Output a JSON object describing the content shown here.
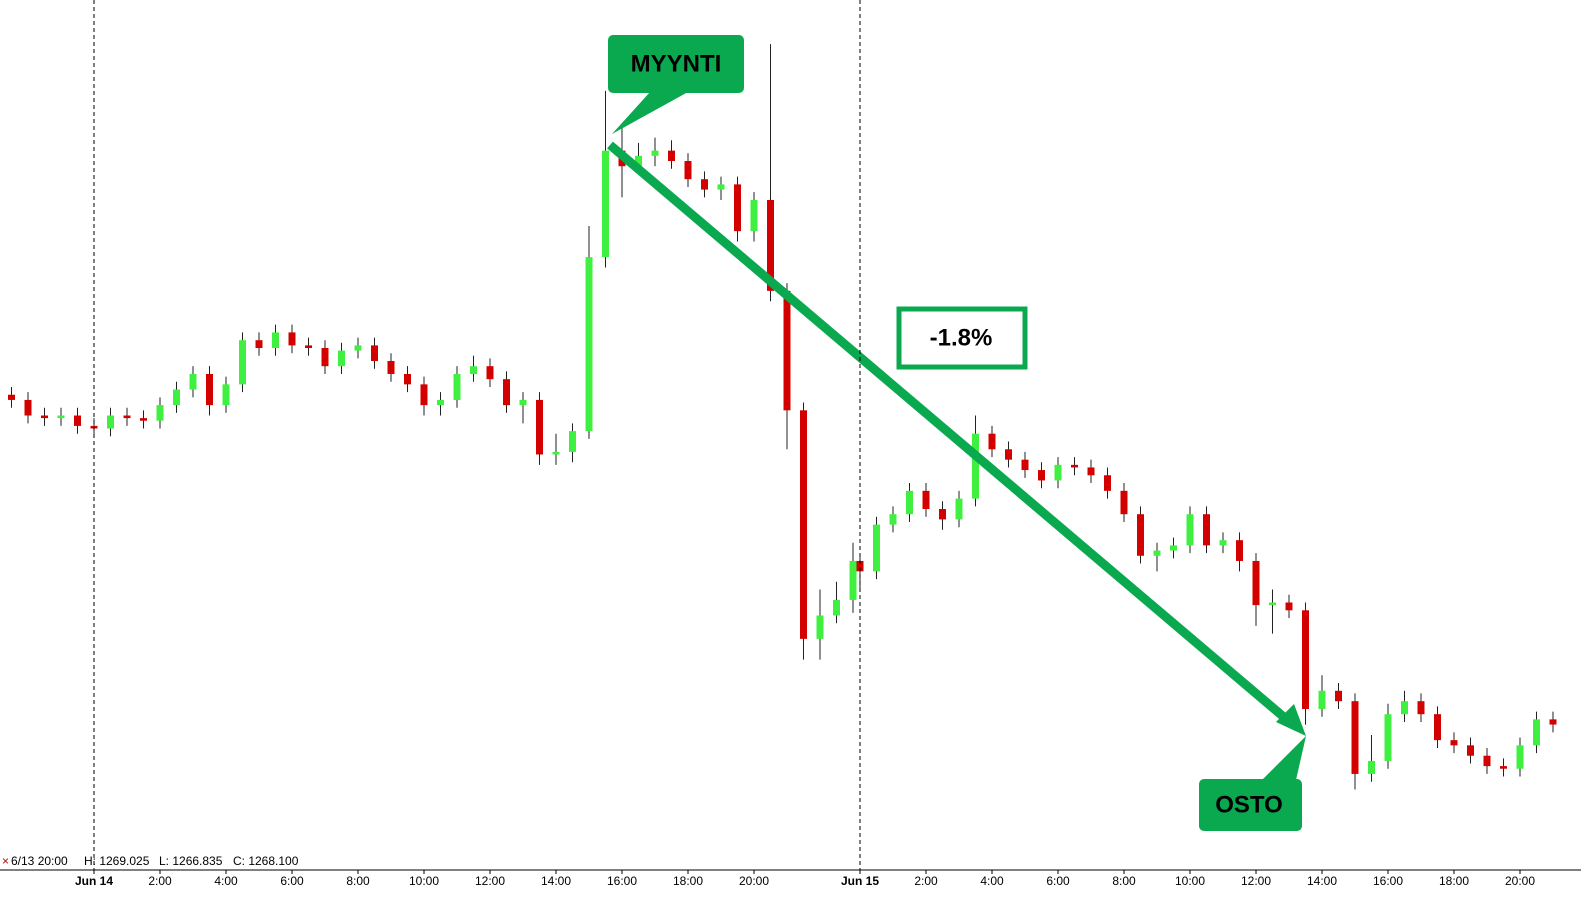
{
  "chart_data": {
    "type": "candlestick",
    "up_color": "#40f040",
    "down_color": "#d40000",
    "ylim": [
      1250.4,
      1283.9
    ],
    "x": [
      -2.5,
      -2,
      -1.5,
      -1,
      -0.5,
      0,
      0.5,
      1,
      1.5,
      2,
      2.5,
      3,
      3.5,
      4,
      4.5,
      5,
      5.5,
      6,
      6.5,
      7,
      7.5,
      8,
      8.5,
      9,
      9.5,
      10,
      10.5,
      11,
      11.5,
      12,
      12.5,
      13,
      13.5,
      14,
      14.5,
      15,
      15.5,
      16,
      16.5,
      17,
      17.5,
      18,
      18.5,
      19,
      19.5,
      20,
      20.5,
      21,
      21.5,
      22,
      22.5,
      23,
      24,
      24.5,
      25,
      25.5,
      26,
      26.5,
      27,
      27.5,
      28,
      28.5,
      29,
      29.5,
      30,
      30.5,
      31,
      31.5,
      32,
      32.5,
      33,
      33.5,
      34,
      34.5,
      35,
      35.5,
      36,
      36.5,
      37,
      37.5,
      38,
      38.5,
      39,
      39.5,
      40,
      40.5,
      41,
      41.5,
      42,
      42.5,
      43,
      43.5,
      44,
      44.5,
      45
    ],
    "open": [
      1268.7,
      1268.5,
      1267.9,
      1267.8,
      1267.9,
      1267.5,
      1267.4,
      1267.9,
      1267.8,
      1267.7,
      1268.3,
      1268.9,
      1269.5,
      1268.3,
      1269.1,
      1270.8,
      1270.5,
      1271.1,
      1270.6,
      1270.5,
      1269.8,
      1270.4,
      1270.6,
      1270.0,
      1269.5,
      1269.1,
      1268.3,
      1268.5,
      1269.5,
      1269.8,
      1269.3,
      1268.3,
      1268.5,
      1266.4,
      1266.5,
      1267.3,
      1274.0,
      1278.1,
      1277.5,
      1277.9,
      1278.1,
      1277.7,
      1277.0,
      1276.6,
      1276.8,
      1275.0,
      1276.2,
      1272.7,
      1268.1,
      1259.3,
      1260.2,
      1260.8,
      1262.3,
      1261.9,
      1263.7,
      1264.1,
      1265.0,
      1264.3,
      1263.9,
      1264.7,
      1267.2,
      1266.6,
      1266.2,
      1265.8,
      1265.4,
      1266.0,
      1265.9,
      1265.6,
      1265.0,
      1264.1,
      1262.5,
      1262.7,
      1262.9,
      1264.1,
      1262.9,
      1263.1,
      1262.3,
      1260.6,
      1260.7,
      1260.4,
      1256.6,
      1257.3,
      1256.9,
      1254.1,
      1254.6,
      1256.4,
      1256.9,
      1256.4,
      1255.4,
      1255.2,
      1254.8,
      1254.4,
      1254.3,
      1255.2,
      1256.2
    ],
    "high": [
      1269.0,
      1268.8,
      1268.2,
      1268.2,
      1268.2,
      1267.8,
      1268.2,
      1268.2,
      1268.1,
      1268.6,
      1269.2,
      1269.8,
      1269.8,
      1269.4,
      1271.1,
      1271.1,
      1271.4,
      1271.4,
      1270.9,
      1270.8,
      1270.7,
      1270.9,
      1270.9,
      1270.3,
      1269.8,
      1269.4,
      1268.8,
      1269.8,
      1270.2,
      1270.1,
      1269.6,
      1268.8,
      1268.8,
      1267.2,
      1267.6,
      1275.2,
      1280.4,
      1279.0,
      1278.4,
      1278.6,
      1278.5,
      1278.0,
      1277.3,
      1277.1,
      1277.1,
      1276.5,
      1282.2,
      1273.0,
      1268.4,
      1261.2,
      1261.5,
      1263.0,
      1262.6,
      1264.0,
      1264.4,
      1265.3,
      1265.3,
      1264.6,
      1265.0,
      1267.9,
      1267.5,
      1266.9,
      1266.5,
      1266.1,
      1266.3,
      1266.3,
      1266.2,
      1265.9,
      1265.3,
      1264.4,
      1263.0,
      1263.2,
      1264.4,
      1264.4,
      1263.4,
      1263.4,
      1262.6,
      1261.2,
      1261.0,
      1260.7,
      1257.9,
      1257.6,
      1257.2,
      1255.6,
      1256.8,
      1257.3,
      1257.2,
      1256.7,
      1255.7,
      1255.5,
      1255.1,
      1254.7,
      1255.5,
      1256.5,
      1256.5
    ],
    "low": [
      1268.2,
      1267.6,
      1267.5,
      1267.5,
      1267.2,
      1267.1,
      1267.1,
      1267.5,
      1267.4,
      1267.4,
      1268.0,
      1268.6,
      1267.9,
      1268.0,
      1268.8,
      1270.2,
      1270.2,
      1270.3,
      1270.2,
      1269.5,
      1269.5,
      1270.1,
      1269.7,
      1269.2,
      1268.8,
      1267.9,
      1267.9,
      1268.2,
      1269.2,
      1269.0,
      1268.0,
      1267.6,
      1266.0,
      1266.0,
      1266.1,
      1267.0,
      1273.6,
      1276.3,
      1277.2,
      1277.5,
      1277.4,
      1276.7,
      1276.3,
      1276.2,
      1274.6,
      1274.6,
      1272.3,
      1266.6,
      1258.5,
      1258.5,
      1259.9,
      1260.3,
      1261.2,
      1261.6,
      1263.4,
      1263.8,
      1264.0,
      1263.5,
      1263.6,
      1264.4,
      1266.3,
      1265.9,
      1265.5,
      1265.1,
      1265.1,
      1265.6,
      1265.3,
      1264.7,
      1263.8,
      1262.2,
      1261.9,
      1262.4,
      1262.6,
      1262.6,
      1262.6,
      1261.9,
      1259.8,
      1259.5,
      1260.1,
      1256.0,
      1256.3,
      1256.6,
      1253.5,
      1253.8,
      1254.3,
      1256.1,
      1256.1,
      1255.1,
      1254.9,
      1254.5,
      1254.1,
      1254.0,
      1254.0,
      1254.9,
      1255.7
    ],
    "close": [
      1268.5,
      1267.9,
      1267.8,
      1267.9,
      1267.5,
      1267.4,
      1267.9,
      1267.8,
      1267.7,
      1268.3,
      1268.9,
      1269.5,
      1268.3,
      1269.1,
      1270.8,
      1270.5,
      1271.1,
      1270.6,
      1270.5,
      1269.8,
      1270.4,
      1270.6,
      1270.0,
      1269.5,
      1269.1,
      1268.3,
      1268.5,
      1269.5,
      1269.8,
      1269.3,
      1268.3,
      1268.5,
      1266.4,
      1266.5,
      1267.3,
      1274.0,
      1278.1,
      1277.5,
      1277.9,
      1278.1,
      1277.7,
      1277.0,
      1276.6,
      1276.8,
      1275.0,
      1276.2,
      1272.7,
      1268.1,
      1259.3,
      1260.2,
      1260.8,
      1262.3,
      1261.9,
      1263.7,
      1264.1,
      1265.0,
      1264.3,
      1263.9,
      1264.7,
      1267.2,
      1266.6,
      1266.2,
      1265.8,
      1265.4,
      1266.0,
      1265.9,
      1265.6,
      1265.0,
      1264.1,
      1262.5,
      1262.7,
      1262.9,
      1264.1,
      1262.9,
      1263.1,
      1262.3,
      1260.6,
      1260.7,
      1260.4,
      1256.6,
      1257.3,
      1256.9,
      1254.1,
      1254.6,
      1256.4,
      1256.9,
      1256.4,
      1255.4,
      1255.2,
      1254.8,
      1254.4,
      1254.3,
      1255.2,
      1256.2,
      1256.0
    ],
    "xticks": [
      {
        "value": 0,
        "label": "Jun 14"
      },
      {
        "value": 2,
        "label": "2:00"
      },
      {
        "value": 4,
        "label": "4:00"
      },
      {
        "value": 6,
        "label": "6:00"
      },
      {
        "value": 8,
        "label": "8:00"
      },
      {
        "value": 10,
        "label": "10:00"
      },
      {
        "value": 12,
        "label": "12:00"
      },
      {
        "value": 14,
        "label": "14:00"
      },
      {
        "value": 16,
        "label": "16:00"
      },
      {
        "value": 18,
        "label": "18:00"
      },
      {
        "value": 20,
        "label": "20:00"
      },
      {
        "value": 24,
        "label": "Jun 15"
      },
      {
        "value": 26,
        "label": "2:00"
      },
      {
        "value": 28,
        "label": "4:00"
      },
      {
        "value": 30,
        "label": "6:00"
      },
      {
        "value": 32,
        "label": "8:00"
      },
      {
        "value": 34,
        "label": "10:00"
      },
      {
        "value": 36,
        "label": "12:00"
      },
      {
        "value": 38,
        "label": "14:00"
      },
      {
        "value": 40,
        "label": "16:00"
      },
      {
        "value": 42,
        "label": "18:00"
      },
      {
        "value": 44,
        "label": "20:00"
      }
    ],
    "annotations": {
      "sell": "MYYNTI",
      "change": "-1.8%",
      "buy": "OSTO"
    },
    "status": {
      "time": "6/13 20:00",
      "high": "H: 1269.025",
      "low": "L: 1266.835",
      "close": "C: 1268.100"
    }
  }
}
